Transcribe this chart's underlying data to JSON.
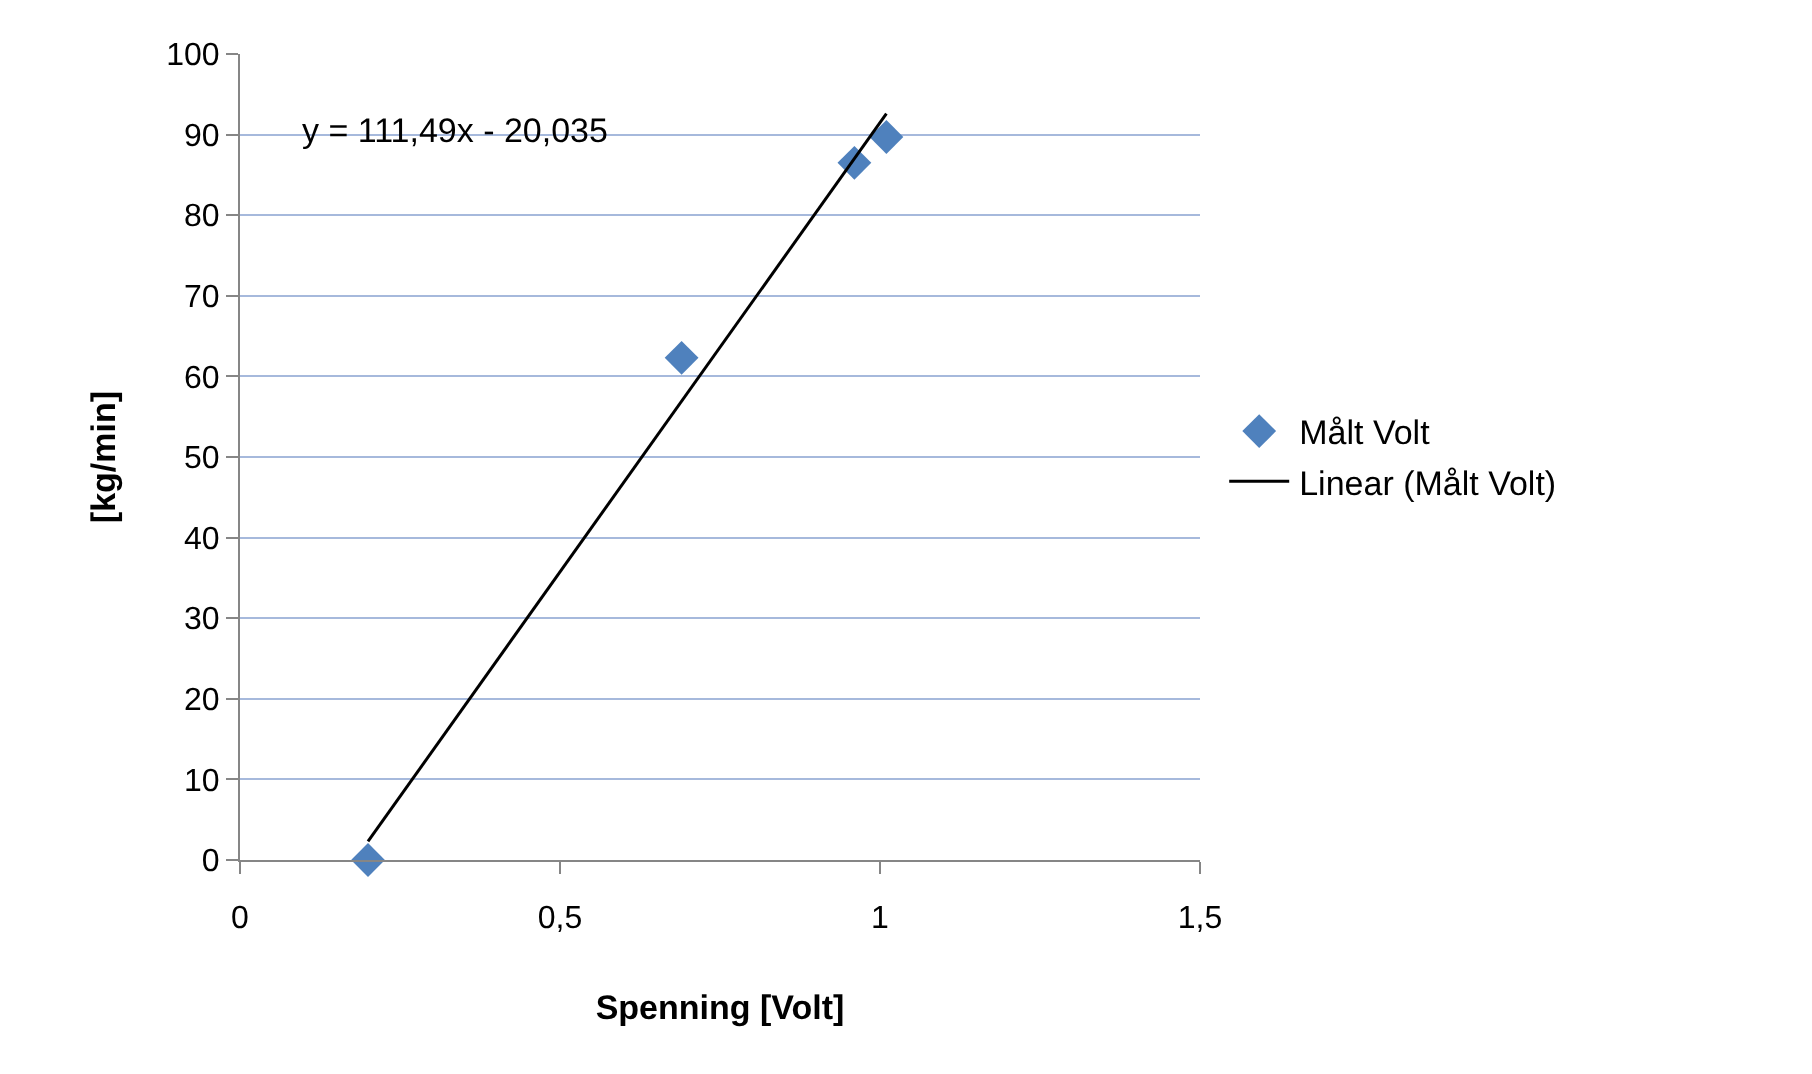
{
  "chart_data": {
    "type": "scatter",
    "xlabel": "Spenning [Volt]",
    "ylabel": "[kg/min]",
    "series": [
      {
        "name": "Målt Volt",
        "marker": "diamond",
        "color": "#4f81bd",
        "x": [
          0.2,
          0.69,
          0.96,
          1.01
        ],
        "values": [
          0,
          62.3,
          86.5,
          89.7
        ]
      },
      {
        "name": "Linear (Målt Volt)",
        "type": "line",
        "marker": "none",
        "color": "#000000",
        "x": [
          0.2,
          1.01
        ],
        "values": [
          2.3,
          92.6
        ]
      }
    ],
    "xlim": [
      0,
      1.5
    ],
    "xticks": [
      0,
      {
        "value": 0.5,
        "label": "0,5"
      },
      1,
      {
        "value": 1.5,
        "label": "1,5"
      }
    ],
    "ylim": [
      0,
      100
    ],
    "yticks": [
      0,
      10,
      20,
      30,
      40,
      50,
      60,
      70,
      80,
      90,
      100
    ],
    "grid": "y",
    "legend": "right",
    "annotations": [
      "y = 111,49x - 20,035"
    ]
  }
}
